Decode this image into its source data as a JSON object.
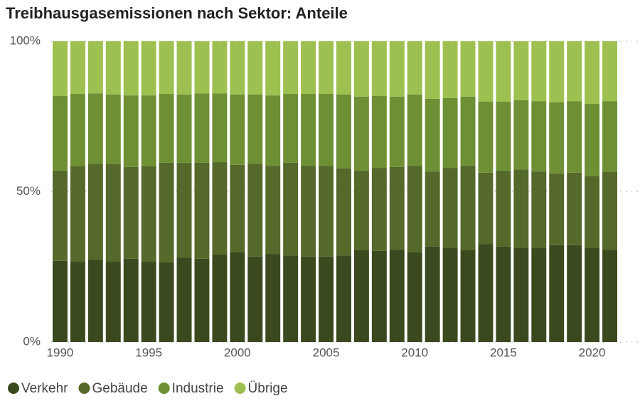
{
  "chart_data": {
    "type": "stacked_bar",
    "title": "Treibhausgasemissionen nach Sektor: Anteile",
    "x": [
      1990,
      1991,
      1992,
      1993,
      1994,
      1995,
      1996,
      1997,
      1998,
      1999,
      2000,
      2001,
      2002,
      2003,
      2004,
      2005,
      2006,
      2007,
      2008,
      2009,
      2010,
      2011,
      2012,
      2013,
      2014,
      2015,
      2016,
      2017,
      2018,
      2019,
      2020,
      2021
    ],
    "series": [
      {
        "name": "Verkehr",
        "color": "#3a4a1e",
        "values": [
          27.0,
          26.7,
          27.4,
          26.7,
          27.7,
          26.7,
          26.5,
          28.1,
          27.7,
          29.1,
          29.8,
          28.4,
          29.3,
          28.8,
          28.4,
          28.4,
          28.8,
          30.5,
          30.3,
          30.7,
          29.8,
          31.7,
          31.2,
          30.5,
          32.6,
          31.7,
          31.2,
          31.2,
          32.2,
          32.2,
          31.2,
          30.7
        ]
      },
      {
        "name": "Gebäude",
        "color": "#55692a",
        "values": [
          30.0,
          31.7,
          31.9,
          32.4,
          30.5,
          31.7,
          33.1,
          31.5,
          31.9,
          30.7,
          29.1,
          30.9,
          29.3,
          30.8,
          30.2,
          30.2,
          28.9,
          26.5,
          27.6,
          27.5,
          28.8,
          25.0,
          26.7,
          28.1,
          23.7,
          25.3,
          26.2,
          25.5,
          23.8,
          24.1,
          23.9,
          25.8
        ]
      },
      {
        "name": "Industrie",
        "color": "#6f8f34",
        "values": [
          24.8,
          24.1,
          23.4,
          23.2,
          23.8,
          23.6,
          22.9,
          22.7,
          23.1,
          22.9,
          23.4,
          23.0,
          23.4,
          22.9,
          23.9,
          23.9,
          24.6,
          24.6,
          23.9,
          23.4,
          23.7,
          24.2,
          23.2,
          23.0,
          23.6,
          22.9,
          23.0,
          23.4,
          23.7,
          23.8,
          24.1,
          23.6
        ]
      },
      {
        "name": "Übrige",
        "color": "#9dc050",
        "values": [
          18.2,
          17.5,
          17.3,
          17.7,
          18.0,
          18.0,
          17.5,
          17.7,
          17.3,
          17.3,
          17.7,
          17.7,
          18.0,
          17.5,
          17.5,
          17.5,
          17.7,
          18.4,
          18.2,
          18.4,
          17.7,
          19.1,
          18.9,
          18.4,
          20.1,
          20.1,
          19.6,
          19.9,
          20.3,
          19.9,
          20.8,
          19.9
        ]
      }
    ],
    "xlim": [
      1989.5,
      2021.5
    ],
    "xticks": [
      1990,
      1995,
      2000,
      2005,
      2010,
      2015,
      2020
    ],
    "ylim": [
      0,
      100
    ],
    "yticks": [
      {
        "value": 0,
        "label": "0%"
      },
      {
        "value": 50,
        "label": "50%"
      },
      {
        "value": 100,
        "label": "100%"
      }
    ],
    "grid": true,
    "legend": "bottom"
  }
}
